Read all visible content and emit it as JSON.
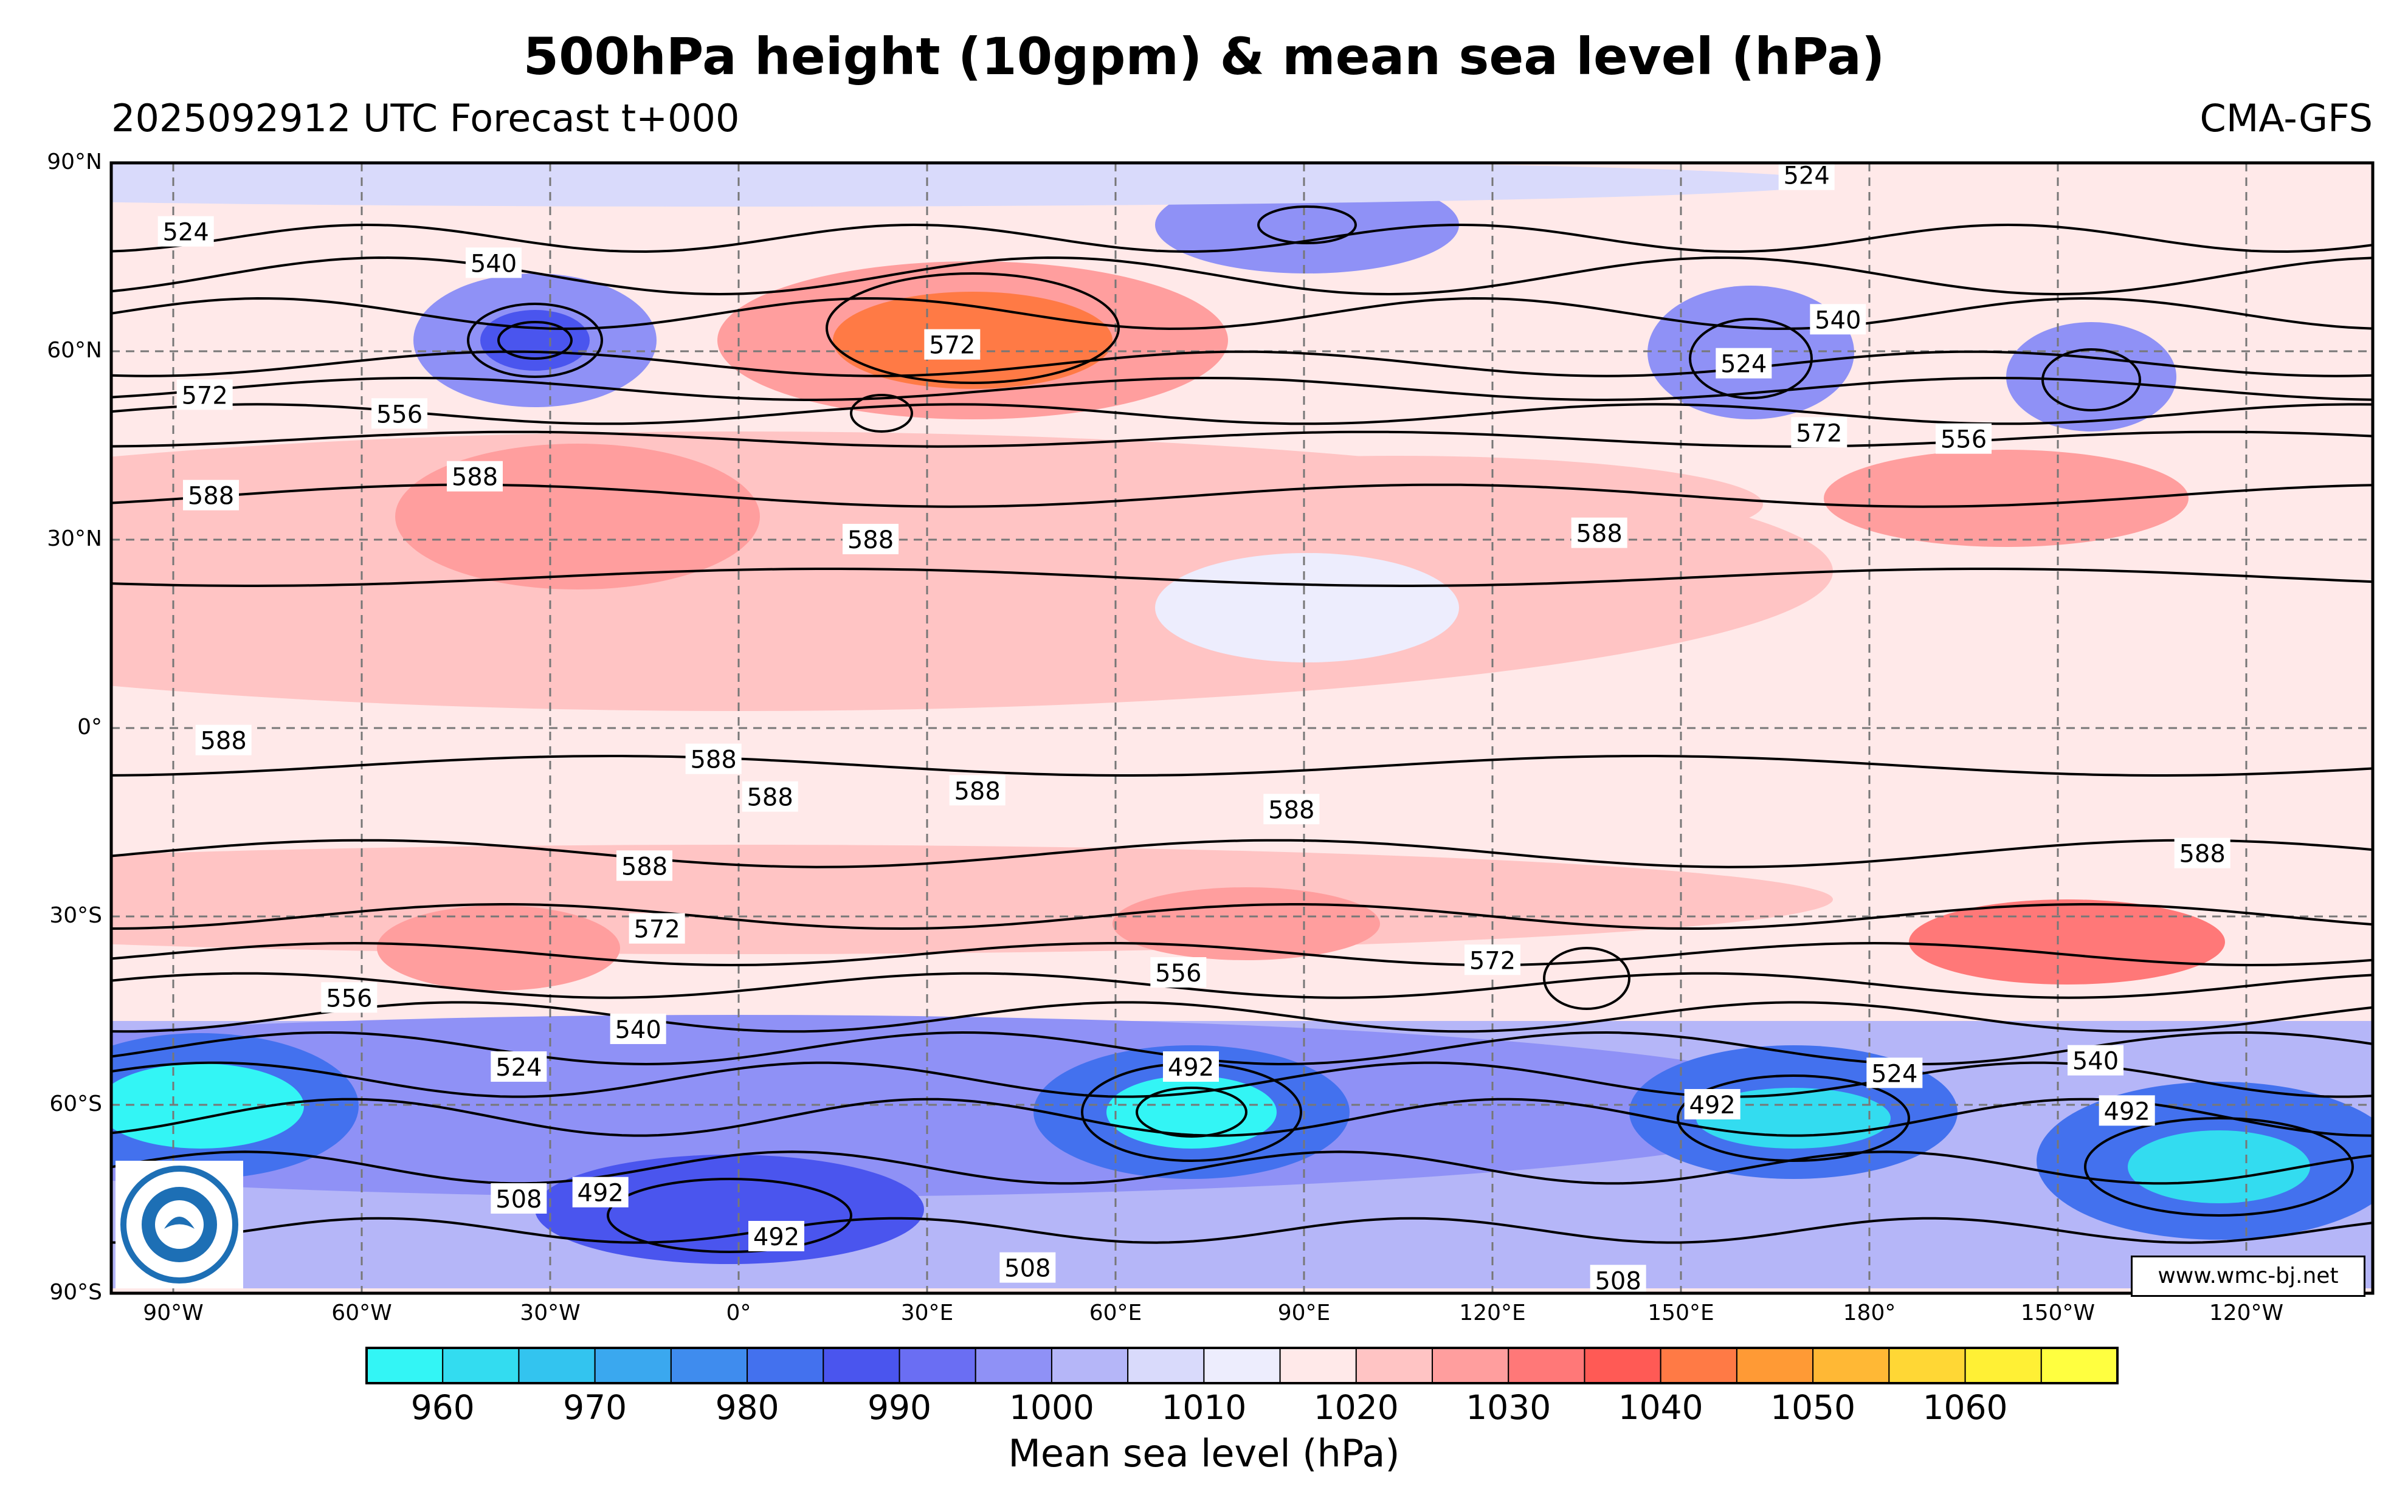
{
  "header": {
    "title": "500hPa height (10gpm) & mean sea level (hPa)",
    "subtitle_left": "2025092912 UTC Forecast t+000",
    "subtitle_right": "CMA-GFS"
  },
  "axes": {
    "lat_labels": [
      "90°N",
      "60°N",
      "30°N",
      "0°",
      "30°S",
      "60°S",
      "90°S"
    ],
    "lon_labels": [
      "90°W",
      "60°W",
      "30°W",
      "0°",
      "30°E",
      "60°E",
      "90°E",
      "120°E",
      "150°E",
      "180°",
      "150°W",
      "120°W"
    ]
  },
  "contour_labels": [
    {
      "text": "524",
      "lon": -88,
      "lat": 79
    },
    {
      "text": "540",
      "lon": -39,
      "lat": 74
    },
    {
      "text": "524",
      "lon": 170,
      "lat": 88
    },
    {
      "text": "572",
      "lon": 34,
      "lat": 61
    },
    {
      "text": "540",
      "lon": 175,
      "lat": 65
    },
    {
      "text": "524",
      "lon": 160,
      "lat": 58
    },
    {
      "text": "572",
      "lon": 172,
      "lat": 47
    },
    {
      "text": "556",
      "lon": -165,
      "lat": 46
    },
    {
      "text": "572",
      "lon": -85,
      "lat": 53
    },
    {
      "text": "556",
      "lon": -54,
      "lat": 50
    },
    {
      "text": "588",
      "lon": -84,
      "lat": 37
    },
    {
      "text": "588",
      "lon": -42,
      "lat": 40
    },
    {
      "text": "588",
      "lon": 21,
      "lat": 30
    },
    {
      "text": "588",
      "lon": 137,
      "lat": 31
    },
    {
      "text": "588",
      "lon": -82,
      "lat": -2
    },
    {
      "text": "588",
      "lon": -4,
      "lat": -5
    },
    {
      "text": "588",
      "lon": 5,
      "lat": -11
    },
    {
      "text": "588",
      "lon": 38,
      "lat": -10
    },
    {
      "text": "588",
      "lon": 88,
      "lat": -13
    },
    {
      "text": "588",
      "lon": -15,
      "lat": -22
    },
    {
      "text": "588",
      "lon": -127,
      "lat": -20
    },
    {
      "text": "572",
      "lon": -13,
      "lat": -32
    },
    {
      "text": "556",
      "lon": -62,
      "lat": -43
    },
    {
      "text": "556",
      "lon": 70,
      "lat": -39
    },
    {
      "text": "572",
      "lon": 120,
      "lat": -37
    },
    {
      "text": "540",
      "lon": -16,
      "lat": -48
    },
    {
      "text": "524",
      "lon": -35,
      "lat": -54
    },
    {
      "text": "540",
      "lon": -144,
      "lat": -53
    },
    {
      "text": "524",
      "lon": -176,
      "lat": -55
    },
    {
      "text": "508",
      "lon": -105,
      "lat": -53
    },
    {
      "text": "492",
      "lon": 72,
      "lat": -54
    },
    {
      "text": "492",
      "lon": 155,
      "lat": -60
    },
    {
      "text": "492",
      "lon": -139,
      "lat": -61
    },
    {
      "text": "508",
      "lon": -35,
      "lat": -75
    },
    {
      "text": "492",
      "lon": -22,
      "lat": -74
    },
    {
      "text": "492",
      "lon": 6,
      "lat": -81
    },
    {
      "text": "508",
      "lon": 46,
      "lat": -86
    },
    {
      "text": "508",
      "lon": 140,
      "lat": -88
    }
  ],
  "colorbar": {
    "title": "Mean sea level (hPa)",
    "tick_labels": [
      "960",
      "970",
      "980",
      "990",
      "1000",
      "1010",
      "1020",
      "1030",
      "1040",
      "1050",
      "1060"
    ],
    "colors": [
      "#33f5f5",
      "#33dcf0",
      "#33c4ef",
      "#3aa8ef",
      "#3f8cee",
      "#4371ee",
      "#4a55ee",
      "#6a6ef3",
      "#8f91f6",
      "#b5b6f8",
      "#d9dafb",
      "#ededfd",
      "#ffe9e9",
      "#ffc4c4",
      "#ff9e9e",
      "#ff7878",
      "#ff5a55",
      "#ff7a45",
      "#ff9a35",
      "#ffb835",
      "#ffd735",
      "#fff035",
      "#ffff40"
    ]
  },
  "website": "www.wmc-bj.net",
  "logo": {
    "text": "CHINA METEOROLOGICAL ADMINISTRATION",
    "colors": {
      "ring": "#1d6fb5",
      "background": "#ffffff"
    }
  },
  "map_colors": {
    "high_pressure": "#ff9e9e",
    "low_pressure": "#6a6ef3",
    "deep_low": "#33f5f5",
    "neutral": "#ffe9e9"
  }
}
